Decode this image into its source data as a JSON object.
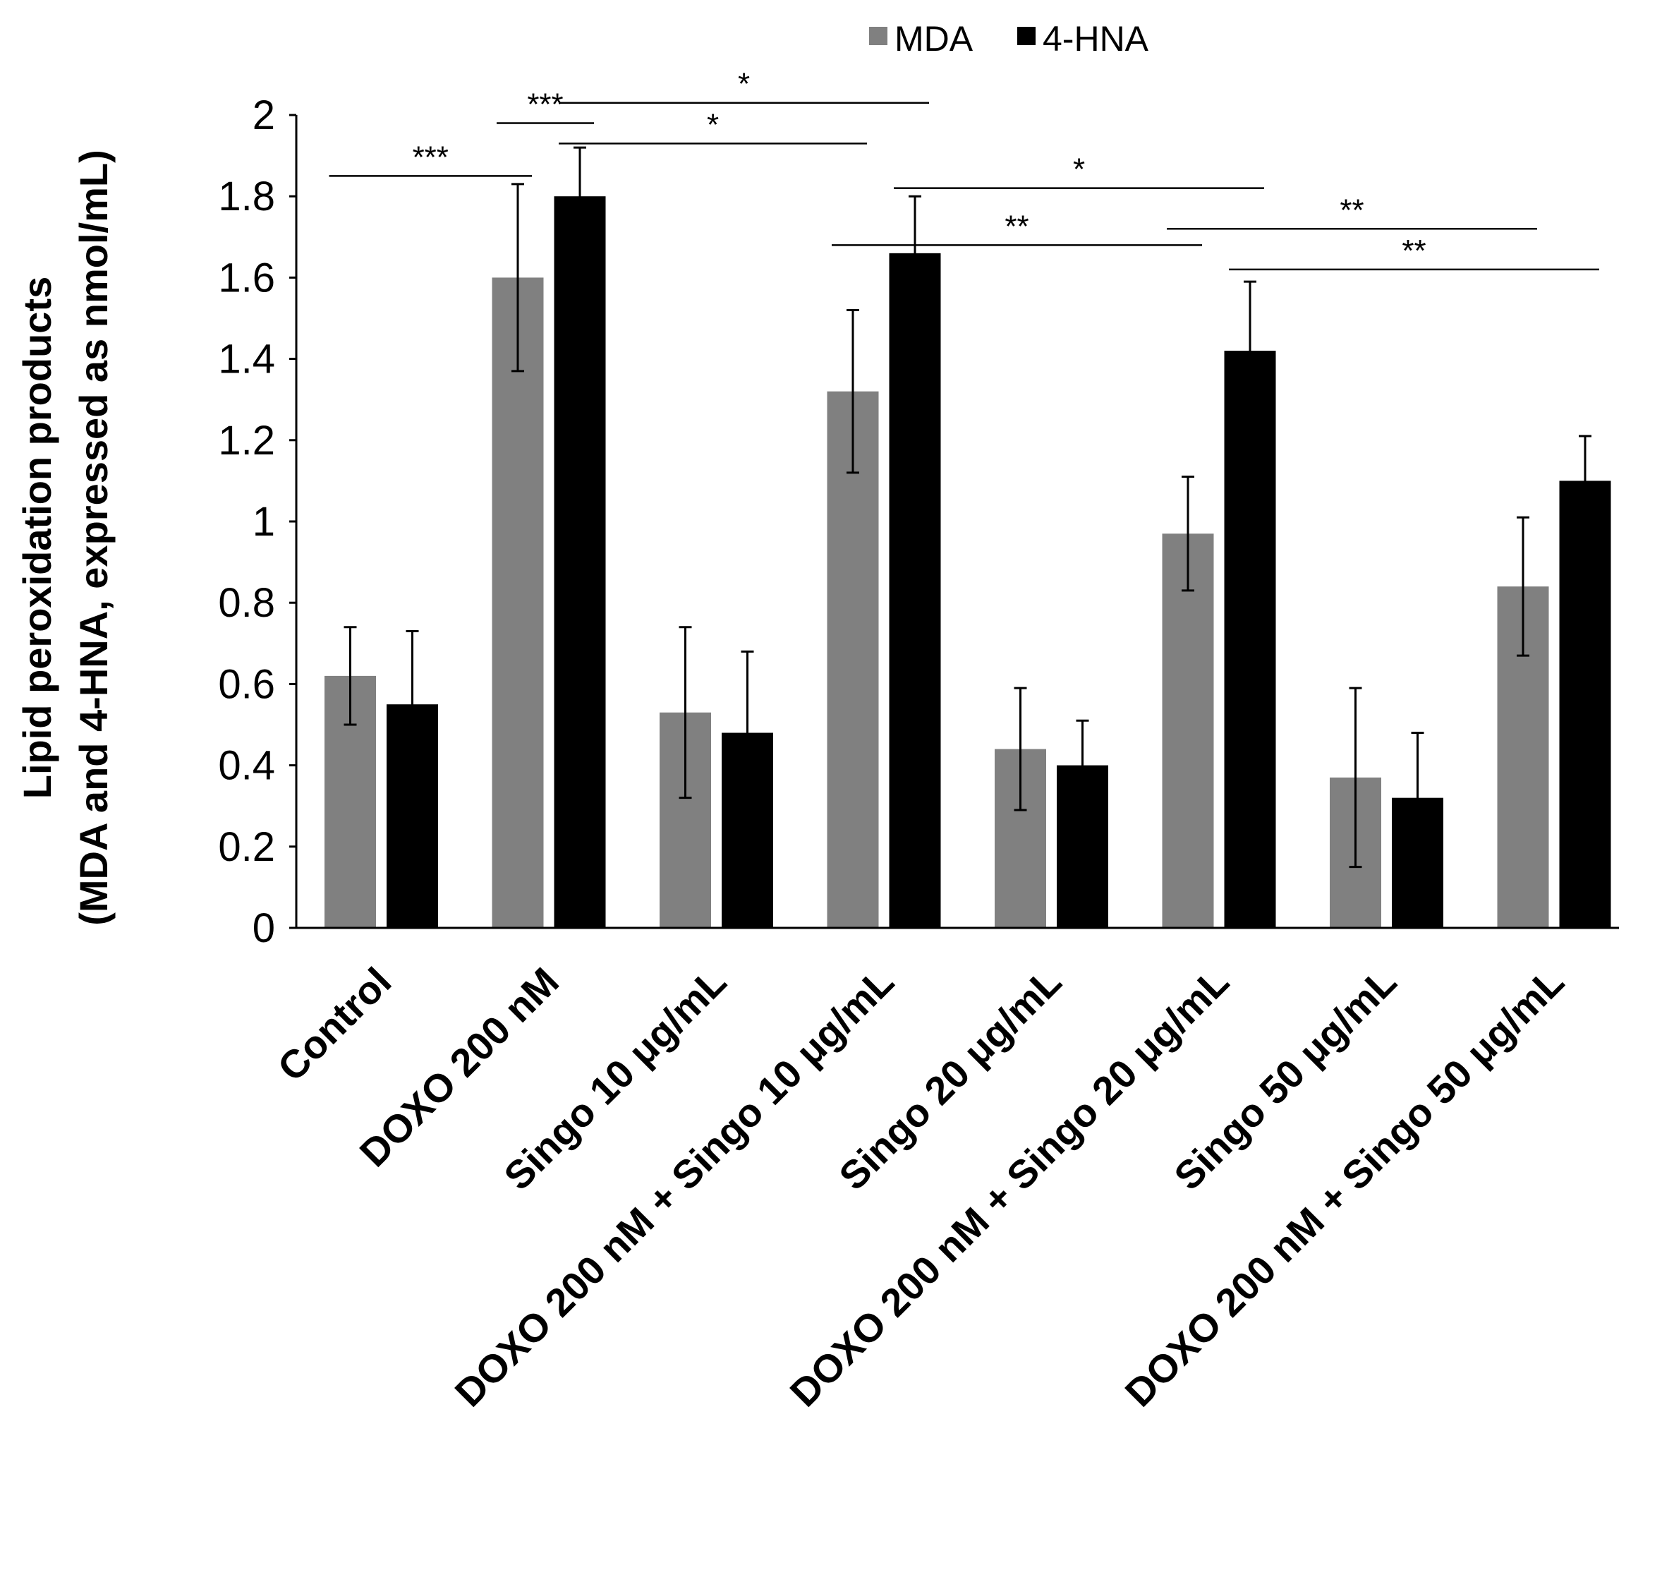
{
  "chart_data": {
    "type": "bar",
    "title": "",
    "xlabel": "",
    "ylabel_line1": "Lipid peroxidation products",
    "ylabel_line2": "(MDA and 4-HNA, expressed as nmol/mL)",
    "ylim": [
      0,
      2
    ],
    "yticks": [
      0,
      0.2,
      0.4,
      0.6,
      0.8,
      1.0,
      1.2,
      1.4,
      1.6,
      1.8,
      2.0
    ],
    "ytick_labels": [
      "0",
      "0.2",
      "0.4",
      "0.6",
      "0.8",
      "1",
      "1.2",
      "1.4",
      "1.6",
      "1.8",
      "2"
    ],
    "grid": false,
    "legend_position": "top-center",
    "categories": [
      "Control",
      "DOXO 200 nM",
      "Singo 10 μg/mL",
      "DOXO 200 nM + Singo 10 μg/mL",
      "Singo 20 μg/mL",
      "DOXO 200 nM + Singo 20 μg/mL",
      "Singo 50 μg/mL",
      "DOXO 200 nM + Singo 50 μg/mL"
    ],
    "series": [
      {
        "name": "MDA",
        "color": "#808080",
        "values": [
          0.62,
          1.6,
          0.53,
          1.32,
          0.44,
          0.97,
          0.37,
          0.84
        ],
        "errors": [
          0.12,
          0.23,
          0.21,
          0.2,
          0.15,
          0.14,
          0.22,
          0.17
        ]
      },
      {
        "name": "4-HNA",
        "color": "#000000",
        "values": [
          0.55,
          1.8,
          0.48,
          1.66,
          0.4,
          1.42,
          0.32,
          1.1
        ],
        "errors": [
          0.18,
          0.12,
          0.2,
          0.14,
          0.11,
          0.17,
          0.16,
          0.11
        ]
      }
    ],
    "significance": [
      {
        "label": "***",
        "from_category": 0,
        "from_series": 0,
        "to_category": 1,
        "to_series": 0,
        "level": 1.85
      },
      {
        "label": "***",
        "from_category": 1,
        "from_series": 0,
        "to_category": 1,
        "to_series": 1,
        "level": 1.98
      },
      {
        "label": "*",
        "from_category": 1,
        "from_series": 1,
        "to_category": 3,
        "to_series": 0,
        "level": 1.93
      },
      {
        "label": "*",
        "from_category": 1,
        "from_series": 1,
        "to_category": 3,
        "to_series": 1,
        "level": 2.03
      },
      {
        "label": "*",
        "from_category": 3,
        "from_series": 1,
        "to_category": 5,
        "to_series": 1,
        "level": 1.82
      },
      {
        "label": "**",
        "from_category": 3,
        "from_series": 0,
        "to_category": 5,
        "to_series": 0,
        "level": 1.68
      },
      {
        "label": "**",
        "from_category": 5,
        "from_series": 0,
        "to_category": 7,
        "to_series": 0,
        "level": 1.72
      },
      {
        "label": "**",
        "from_category": 5,
        "from_series": 1,
        "to_category": 7,
        "to_series": 1,
        "level": 1.62
      }
    ]
  }
}
